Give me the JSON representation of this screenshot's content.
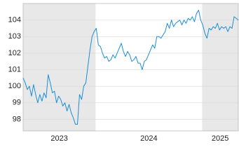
{
  "chart_data": {
    "type": "line",
    "xlim": [
      2023.32,
      2025.34
    ],
    "ylim": [
      97.3,
      105
    ],
    "yticks": [
      98,
      99,
      100,
      101,
      102,
      103,
      104
    ],
    "year_bands": [
      {
        "label": "2023",
        "start": 2023.32,
        "end": 2024,
        "shaded": true
      },
      {
        "label": "2024",
        "start": 2024,
        "end": 2025,
        "shaded": false
      },
      {
        "label": "2025",
        "start": 2025,
        "end": 2025.34,
        "shaded": true
      }
    ],
    "grid": true,
    "color": "#1a8fd6",
    "values": [
      100.5,
      100.2,
      99.8,
      100.0,
      99.4,
      100.1,
      99.5,
      99.0,
      99.5,
      99.1,
      99.6,
      99.3,
      100.7,
      100.2,
      99.6,
      99.7,
      99.0,
      99.4,
      99.2,
      98.8,
      99.0,
      98.5,
      98.9,
      98.4,
      98.1,
      97.7,
      97.7,
      99.5,
      99.2,
      100.0,
      100.2,
      101.2,
      102.2,
      103.0,
      103.3,
      103.5,
      102.5,
      102.4,
      102.0,
      101.7,
      101.8,
      101.5,
      101.6,
      101.9,
      101.7,
      102.0,
      102.3,
      102.6,
      102.1,
      101.8,
      102.1,
      101.9,
      101.5,
      101.6,
      101.8,
      101.4,
      101.4,
      101.0,
      101.5,
      101.6,
      101.9,
      102.2,
      102.5,
      102.3,
      103.0,
      103.0,
      102.9,
      103.1,
      103.3,
      103.8,
      103.5,
      104.0,
      103.6,
      103.8,
      103.9,
      104.0,
      103.7,
      104.0,
      103.8,
      104.1,
      104.0,
      104.2,
      103.9,
      104.4,
      104.6,
      104.0,
      103.7,
      103.2,
      102.9,
      103.5,
      103.4,
      103.6,
      103.5,
      103.8,
      103.4,
      103.6,
      103.5,
      103.6,
      103.3,
      103.6,
      103.5,
      104.2,
      104.1,
      104.0
    ]
  }
}
